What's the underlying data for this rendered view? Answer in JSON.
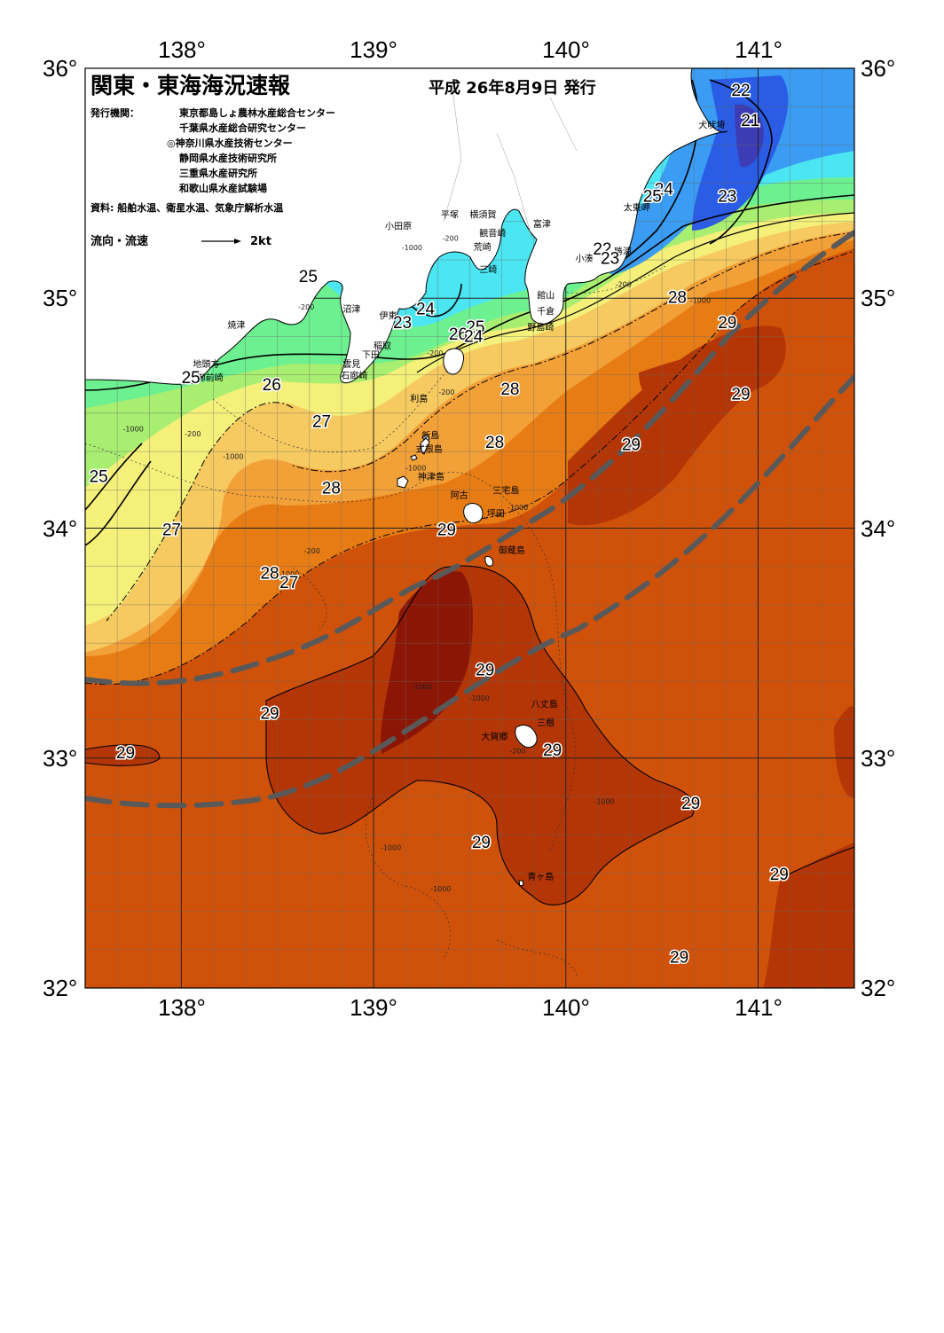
{
  "title": "関東・東海海況速報",
  "issue_date": "平成 26年8月9日 発行",
  "issuer_label": "発行機関：",
  "issuers": [
    "東京都島しょ農林水産総合センター",
    "千葉県水産総合研究センター",
    "◎神奈川県水産技術センター",
    "静岡県水産技術研究所",
    "三重県水産研究所",
    "和歌山県水産試験場"
  ],
  "sources": "資料: 船舶水温、衛星水温、気象庁解析水温",
  "flow_legend": {
    "label": "流向・流速",
    "speed": "2kt"
  },
  "axes": {
    "lon_labels": [
      "138°",
      "139°",
      "140°",
      "141°"
    ],
    "lat_labels": [
      "36°",
      "35°",
      "34°",
      "33°",
      "32°"
    ]
  },
  "temperature_labels": [
    {
      "text": "22",
      "lon": 140.91,
      "lat": 35.88
    },
    {
      "text": "21",
      "lon": 140.96,
      "lat": 35.75
    },
    {
      "text": "24",
      "lon": 140.51,
      "lat": 35.45
    },
    {
      "text": "25",
      "lon": 140.45,
      "lat": 35.42
    },
    {
      "text": "23",
      "lon": 140.84,
      "lat": 35.42
    },
    {
      "text": "22",
      "lon": 140.19,
      "lat": 35.19
    },
    {
      "text": "23",
      "lon": 140.23,
      "lat": 35.15
    },
    {
      "text": "28",
      "lon": 140.58,
      "lat": 34.98
    },
    {
      "text": "29",
      "lon": 140.84,
      "lat": 34.87
    },
    {
      "text": "25",
      "lon": 138.66,
      "lat": 35.07
    },
    {
      "text": "24",
      "lon": 139.27,
      "lat": 34.93
    },
    {
      "text": "23",
      "lon": 139.15,
      "lat": 34.87
    },
    {
      "text": "26",
      "lon": 139.44,
      "lat": 34.82
    },
    {
      "text": "25",
      "lon": 139.53,
      "lat": 34.85
    },
    {
      "text": "24",
      "lon": 139.52,
      "lat": 34.81
    },
    {
      "text": "26",
      "lon": 138.47,
      "lat": 34.6
    },
    {
      "text": "25",
      "lon": 138.05,
      "lat": 34.63
    },
    {
      "text": "28",
      "lon": 139.71,
      "lat": 34.58
    },
    {
      "text": "29",
      "lon": 140.91,
      "lat": 34.56
    },
    {
      "text": "27",
      "lon": 138.73,
      "lat": 34.44
    },
    {
      "text": "28",
      "lon": 139.63,
      "lat": 34.35
    },
    {
      "text": "29",
      "lon": 140.34,
      "lat": 34.34
    },
    {
      "text": "25",
      "lon": 137.57,
      "lat": 34.2
    },
    {
      "text": "28",
      "lon": 138.78,
      "lat": 34.15
    },
    {
      "text": "27",
      "lon": 137.95,
      "lat": 33.97
    },
    {
      "text": "29",
      "lon": 139.38,
      "lat": 33.97
    },
    {
      "text": "28",
      "lon": 138.46,
      "lat": 33.78
    },
    {
      "text": "27",
      "lon": 138.56,
      "lat": 33.74
    },
    {
      "text": "29",
      "lon": 139.58,
      "lat": 33.36
    },
    {
      "text": "29",
      "lon": 138.46,
      "lat": 33.17
    },
    {
      "text": "29",
      "lon": 139.93,
      "lat": 33.01
    },
    {
      "text": "29",
      "lon": 137.71,
      "lat": 33.0
    },
    {
      "text": "29",
      "lon": 140.65,
      "lat": 32.78
    },
    {
      "text": "29",
      "lon": 139.56,
      "lat": 32.61
    },
    {
      "text": "29",
      "lon": 141.11,
      "lat": 32.47
    },
    {
      "text": "29",
      "lon": 140.59,
      "lat": 32.11
    }
  ],
  "place_labels": [
    {
      "text": "犬吠埼",
      "lon": 140.69,
      "lat": 35.74
    },
    {
      "text": "太東岬",
      "lon": 140.3,
      "lat": 35.38
    },
    {
      "text": "勝浦",
      "lon": 140.25,
      "lat": 35.19
    },
    {
      "text": "小湊",
      "lon": 140.05,
      "lat": 35.16
    },
    {
      "text": "富津",
      "lon": 139.83,
      "lat": 35.31
    },
    {
      "text": "横須賀",
      "lon": 139.5,
      "lat": 35.35
    },
    {
      "text": "観音崎",
      "lon": 139.55,
      "lat": 35.27
    },
    {
      "text": "平塚",
      "lon": 139.35,
      "lat": 35.35
    },
    {
      "text": "小田原",
      "lon": 139.06,
      "lat": 35.3
    },
    {
      "text": "荒崎",
      "lon": 139.52,
      "lat": 35.21
    },
    {
      "text": "三崎",
      "lon": 139.55,
      "lat": 35.11
    },
    {
      "text": "館山",
      "lon": 139.85,
      "lat": 35.0
    },
    {
      "text": "千倉",
      "lon": 139.85,
      "lat": 34.93
    },
    {
      "text": "野島崎",
      "lon": 139.8,
      "lat": 34.86
    },
    {
      "text": "沼津",
      "lon": 138.84,
      "lat": 34.94
    },
    {
      "text": "伊東",
      "lon": 139.03,
      "lat": 34.91
    },
    {
      "text": "焼津",
      "lon": 138.24,
      "lat": 34.87
    },
    {
      "text": "稲取",
      "lon": 139.0,
      "lat": 34.78
    },
    {
      "text": "下田",
      "lon": 138.94,
      "lat": 34.74
    },
    {
      "text": "雲見",
      "lon": 138.84,
      "lat": 34.7
    },
    {
      "text": "石廊崎",
      "lon": 138.83,
      "lat": 34.65
    },
    {
      "text": "地頭方",
      "lon": 138.06,
      "lat": 34.7
    },
    {
      "text": "御前崎",
      "lon": 138.08,
      "lat": 34.64
    },
    {
      "text": "利島",
      "lon": 139.19,
      "lat": 34.55
    },
    {
      "text": "新島",
      "lon": 139.25,
      "lat": 34.39
    },
    {
      "text": "式根島",
      "lon": 139.22,
      "lat": 34.33
    },
    {
      "text": "神津島",
      "lon": 139.23,
      "lat": 34.21
    },
    {
      "text": "三宅島",
      "lon": 139.62,
      "lat": 34.15
    },
    {
      "text": "阿古",
      "lon": 139.4,
      "lat": 34.13
    },
    {
      "text": "坪田",
      "lon": 139.59,
      "lat": 34.05
    },
    {
      "text": "御蔵島",
      "lon": 139.65,
      "lat": 33.89
    },
    {
      "text": "八丈島",
      "lon": 139.82,
      "lat": 33.22
    },
    {
      "text": "三根",
      "lon": 139.85,
      "lat": 33.14
    },
    {
      "text": "大賀郷",
      "lon": 139.56,
      "lat": 33.08
    },
    {
      "text": "青ヶ島",
      "lon": 139.8,
      "lat": 32.47
    }
  ],
  "depth_labels": [
    {
      "text": "-1000",
      "lon": 139.2,
      "lat": 35.21
    },
    {
      "text": "-200",
      "lon": 139.4,
      "lat": 35.25
    },
    {
      "text": "-200",
      "lon": 138.65,
      "lat": 34.95
    },
    {
      "text": "-200",
      "lon": 140.3,
      "lat": 35.05
    },
    {
      "text": "-1000",
      "lon": 140.7,
      "lat": 34.98
    },
    {
      "text": "-200",
      "lon": 139.32,
      "lat": 34.75
    },
    {
      "text": "-200",
      "lon": 139.38,
      "lat": 34.58
    },
    {
      "text": "-1000",
      "lon": 137.75,
      "lat": 34.42
    },
    {
      "text": "-200",
      "lon": 138.06,
      "lat": 34.4
    },
    {
      "text": "-1000",
      "lon": 138.27,
      "lat": 34.3
    },
    {
      "text": "-1000",
      "lon": 139.22,
      "lat": 34.25
    },
    {
      "text": "-1000",
      "lon": 139.75,
      "lat": 34.08
    },
    {
      "text": "-200",
      "lon": 138.68,
      "lat": 33.89
    },
    {
      "text": "-1000",
      "lon": 138.56,
      "lat": 33.79
    },
    {
      "text": "-1000",
      "lon": 139.25,
      "lat": 33.3
    },
    {
      "text": "-1000",
      "lon": 139.55,
      "lat": 33.25
    },
    {
      "text": "-200",
      "lon": 139.75,
      "lat": 33.02
    },
    {
      "text": "-1000",
      "lon": 140.2,
      "lat": 32.8
    },
    {
      "text": "-1000",
      "lon": 139.09,
      "lat": 32.6
    },
    {
      "text": "-1000",
      "lon": 139.35,
      "lat": 32.42
    }
  ],
  "colors": {
    "t21": "#3c3cb4",
    "t22": "#2a5ce6",
    "t23": "#3a9cf2",
    "t24": "#4ce6f2",
    "t25": "#6cf090",
    "t26": "#a8ee70",
    "t27": "#f4f07a",
    "t28": "#f6ca60",
    "t29a": "#f2a038",
    "t29b": "#e87c14",
    "t30": "#d0520a",
    "t31": "#b43606",
    "t32": "#8c1606",
    "land": "#ffffff",
    "kuroshio": "#595959"
  }
}
